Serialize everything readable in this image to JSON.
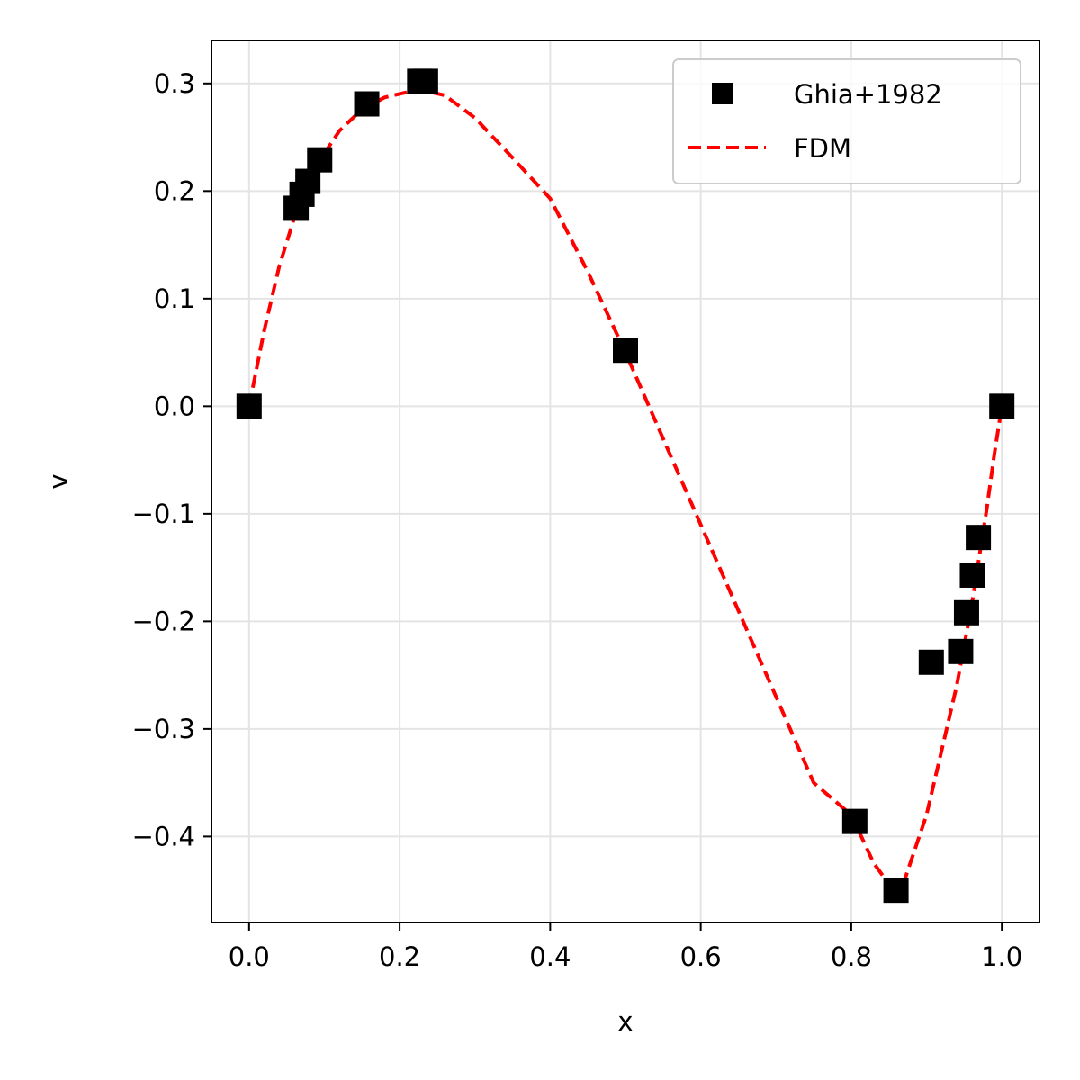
{
  "chart_data": {
    "type": "scatter",
    "title": "",
    "xlabel": "x",
    "ylabel": "v",
    "xlim": [
      -0.05,
      1.05
    ],
    "ylim": [
      -0.48,
      0.34
    ],
    "xticks": [
      0.0,
      0.2,
      0.4,
      0.6,
      0.8,
      1.0
    ],
    "xtick_labels": [
      "0.0",
      "0.2",
      "0.4",
      "0.6",
      "0.8",
      "1.0"
    ],
    "yticks": [
      0.3,
      0.2,
      0.1,
      0.0,
      -0.1,
      -0.2,
      -0.3,
      -0.4
    ],
    "ytick_labels": [
      "0.3",
      "0.2",
      "0.1",
      "0.0",
      "−0.1",
      "−0.2",
      "−0.3",
      "−0.4"
    ],
    "grid": true,
    "legend_position": "top-right",
    "series": [
      {
        "name": "Ghia+1982",
        "kind": "scatter",
        "marker": "square",
        "color": "#000000",
        "points": [
          [
            0.0,
            0.0
          ],
          [
            0.0625,
            0.184
          ],
          [
            0.0703,
            0.197
          ],
          [
            0.0781,
            0.209
          ],
          [
            0.0938,
            0.229
          ],
          [
            0.1563,
            0.281
          ],
          [
            0.2266,
            0.302
          ],
          [
            0.2344,
            0.302
          ],
          [
            0.5,
            0.052
          ],
          [
            0.8047,
            -0.386
          ],
          [
            0.8594,
            -0.45
          ],
          [
            0.9063,
            -0.238
          ],
          [
            0.9453,
            -0.228
          ],
          [
            0.9531,
            -0.192
          ],
          [
            0.9609,
            -0.157
          ],
          [
            0.9688,
            -0.122
          ],
          [
            1.0,
            0.0
          ]
        ]
      },
      {
        "name": "FDM",
        "kind": "line",
        "style": "dashed",
        "color": "#ff0000",
        "points": [
          [
            0.0,
            0.0
          ],
          [
            0.02,
            0.07
          ],
          [
            0.04,
            0.13
          ],
          [
            0.06,
            0.175
          ],
          [
            0.08,
            0.21
          ],
          [
            0.1,
            0.235
          ],
          [
            0.12,
            0.256
          ],
          [
            0.15,
            0.276
          ],
          [
            0.18,
            0.287
          ],
          [
            0.21,
            0.292
          ],
          [
            0.235,
            0.293
          ],
          [
            0.26,
            0.289
          ],
          [
            0.3,
            0.268
          ],
          [
            0.35,
            0.231
          ],
          [
            0.4,
            0.193
          ],
          [
            0.45,
            0.125
          ],
          [
            0.5,
            0.05
          ],
          [
            0.55,
            -0.03
          ],
          [
            0.6,
            -0.11
          ],
          [
            0.65,
            -0.19
          ],
          [
            0.7,
            -0.27
          ],
          [
            0.75,
            -0.35
          ],
          [
            0.8,
            -0.38
          ],
          [
            0.83,
            -0.425
          ],
          [
            0.85,
            -0.444
          ],
          [
            0.86,
            -0.447
          ],
          [
            0.87,
            -0.442
          ],
          [
            0.9,
            -0.38
          ],
          [
            0.92,
            -0.32
          ],
          [
            0.94,
            -0.26
          ],
          [
            0.96,
            -0.185
          ],
          [
            0.97,
            -0.14
          ],
          [
            0.98,
            -0.095
          ],
          [
            0.99,
            -0.045
          ],
          [
            1.0,
            0.0
          ]
        ]
      }
    ]
  }
}
